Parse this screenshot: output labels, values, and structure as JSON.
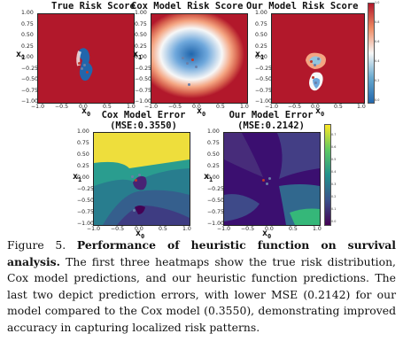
{
  "panels": [
    {
      "title": "True Risk Score"
    },
    {
      "title": "Cox Model Risk Score"
    },
    {
      "title": "Our Model Risk Score"
    },
    {
      "title": "Cox Model Error",
      "mse": "(MSE:0.3550)"
    },
    {
      "title": "Our Model Error",
      "mse": "(MSE:0.2142)"
    }
  ],
  "axes": {
    "xlabel": "x",
    "xsub": "0",
    "ylabel": "x",
    "ysub": "1",
    "x_ticks": [
      "−1.0",
      "−0.5",
      "0.0",
      "0.5",
      "1.0"
    ],
    "y_ticks": [
      "1.00",
      "0.75",
      "0.50",
      "0.25",
      "0.00",
      "−0.25",
      "−0.50",
      "−0.75",
      "−1.00"
    ]
  },
  "colorbar_risk": {
    "ticks": [
      "1.0",
      "0.8",
      "0.6",
      "0.4",
      "0.2",
      "0.0"
    ],
    "colors": [
      "#c81d25",
      "#f7f7f7",
      "#1f4e96"
    ]
  },
  "colorbar_error": {
    "ticks": [
      "0.7",
      "0.6",
      "0.5",
      "0.4",
      "0.3",
      "0.2",
      "0.1",
      "0.0"
    ],
    "colors": [
      "#f0e442",
      "#2a9d8f",
      "#3b0f70"
    ]
  },
  "caption": {
    "label": "Figure 5.",
    "bold": "Performance of heuristic function on survival analysis.",
    "text": "The first three heatmaps show the true risk distribution, Cox model predictions, and our heuristic function predictions. The last two depict prediction errors, with lower MSE (0.2142) for our model compared to the Cox model (0.3550), demonstrating improved accuracy in capturing localized risk patterns."
  }
}
